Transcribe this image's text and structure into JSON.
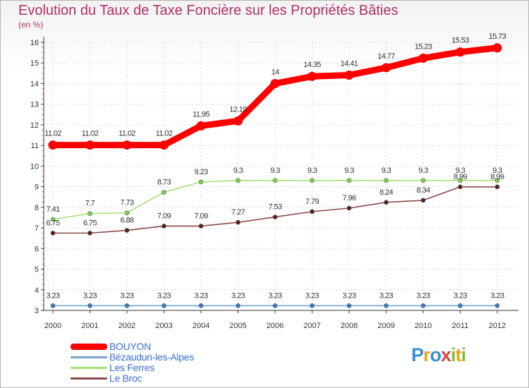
{
  "chart_data": {
    "type": "line",
    "title": "Evolution du Taux de Taxe Foncière sur les Propriétés Bâties",
    "unit_label": "(en %)",
    "categories": [
      "2000",
      "2001",
      "2002",
      "2003",
      "2004",
      "2005",
      "2006",
      "2007",
      "2008",
      "2009",
      "2010",
      "2011",
      "2012"
    ],
    "ylim": [
      3,
      16
    ],
    "yticks": [
      3,
      4,
      5,
      6,
      7,
      8,
      9,
      10,
      11,
      12,
      13,
      14,
      15,
      16
    ],
    "grid": true,
    "legend_position": "bottom-left",
    "series": [
      {
        "name": "BOUYON",
        "color": "#ff0000",
        "marker_fill": "#ff0000",
        "values": [
          11.02,
          11.02,
          11.02,
          11.02,
          11.95,
          12.19,
          14,
          14.35,
          14.41,
          14.77,
          15.23,
          15.53,
          15.73
        ],
        "labels": [
          "11.02",
          "11.02",
          "11.02",
          "11.02",
          "11.95",
          "12.19",
          "14",
          "14.35",
          "14.41",
          "14.77",
          "15.23",
          "15.53",
          "15.73"
        ]
      },
      {
        "name": "Bézaudun-les-Alpes",
        "color": "#7aa6cf",
        "marker_fill": "#3a7fc2",
        "values": [
          3.23,
          3.23,
          3.23,
          3.23,
          3.23,
          3.23,
          3.23,
          3.23,
          3.23,
          3.23,
          3.23,
          3.23,
          3.23
        ],
        "labels": [
          "3.23",
          "3.23",
          "3.23",
          "3.23",
          "3.23",
          "3.23",
          "3.23",
          "3.23",
          "3.23",
          "3.23",
          "3.23",
          "3.23",
          "3.23"
        ]
      },
      {
        "name": "Les Ferres",
        "color": "#a3e07a",
        "marker_fill": "#7ed24a",
        "values": [
          7.41,
          7.7,
          7.73,
          8.73,
          9.23,
          9.3,
          9.3,
          9.3,
          9.3,
          9.3,
          9.3,
          9.3,
          9.3
        ],
        "labels": [
          "7.41",
          "7.7",
          "7.73",
          "8.73",
          "9.23",
          "9.3",
          "9.3",
          "9.3",
          "9.3",
          "9.3",
          "9.3",
          "9.3",
          "9.3"
        ]
      },
      {
        "name": "Le Broc",
        "color": "#8b4a4a",
        "marker_fill": "#5a1f1f",
        "values": [
          6.75,
          6.75,
          6.88,
          7.09,
          7.09,
          7.27,
          7.53,
          7.79,
          7.96,
          8.24,
          8.34,
          8.99,
          8.99
        ],
        "labels": [
          "6.75",
          "6.75",
          "6.88",
          "7.09",
          "7.09",
          "7.27",
          "7.53",
          "7.79",
          "7.96",
          "8.24",
          "8.34",
          "8.99",
          "8.99"
        ]
      }
    ]
  },
  "legend": {
    "items": [
      {
        "label": "BOUYON",
        "color": "#ff0000",
        "line_style": "thick"
      },
      {
        "label": "Bézaudun-les-Alpes",
        "color": "#7aa6cf",
        "line_style": "thin"
      },
      {
        "label": "Les Ferres",
        "color": "#a3e07a",
        "line_style": "thin"
      },
      {
        "label": "Le Broc",
        "color": "#8b4a4a",
        "line_style": "thin"
      }
    ]
  },
  "logo": {
    "letters": [
      {
        "char": "P",
        "color": "#3b8fd6"
      },
      {
        "char": "r",
        "color": "#e8a21c"
      },
      {
        "char": "o",
        "color": "#3b8fd6"
      },
      {
        "char": "x",
        "color": "#d6453b"
      },
      {
        "char": "i",
        "color": "#7fbf3b"
      },
      {
        "char": "t",
        "color": "#e8a21c"
      },
      {
        "char": "i",
        "color": "#7fbf3b"
      }
    ]
  }
}
